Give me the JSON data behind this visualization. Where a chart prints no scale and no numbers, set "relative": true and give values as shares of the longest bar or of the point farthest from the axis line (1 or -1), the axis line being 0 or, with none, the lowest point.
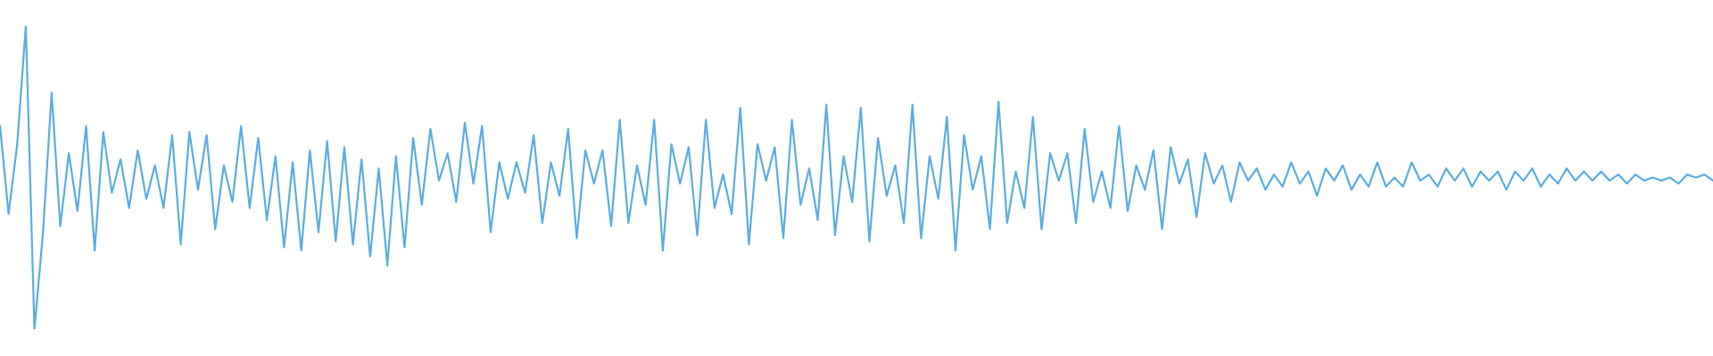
{
  "chart_data": {
    "type": "line",
    "relative": true,
    "categories": [
      null,
      null,
      null,
      null,
      null,
      null,
      null,
      null,
      null,
      null,
      null,
      null,
      null,
      null,
      null,
      null,
      null,
      null,
      null,
      null,
      null,
      null,
      null,
      null,
      null,
      null,
      null,
      null,
      null,
      null,
      null,
      null,
      null,
      null,
      null,
      null,
      null,
      null,
      null,
      null,
      null,
      null,
      null,
      null,
      null,
      null,
      null,
      null,
      null,
      null,
      null,
      null,
      null,
      null,
      null,
      null,
      null,
      null,
      null,
      null,
      null,
      null,
      null,
      null,
      null,
      null,
      null,
      null,
      null,
      null,
      null,
      null,
      null,
      null,
      null,
      null,
      null,
      null,
      null,
      null,
      null,
      null,
      null,
      null,
      null,
      null,
      null,
      null,
      null,
      null,
      null,
      null,
      null,
      null,
      null,
      null,
      null,
      null,
      null,
      null,
      null,
      null,
      null,
      null,
      null,
      null,
      null,
      null,
      null,
      null,
      null,
      null,
      null,
      null,
      null,
      null,
      null,
      null,
      null,
      null,
      null,
      null,
      null,
      null,
      null,
      null,
      null,
      null,
      null,
      null,
      null,
      null,
      null,
      null,
      null,
      null,
      null,
      null,
      null,
      null,
      null,
      null,
      null,
      null,
      null,
      null,
      null,
      null,
      null,
      null,
      null,
      null,
      null,
      null,
      null,
      null,
      null,
      null,
      null,
      null,
      null,
      null,
      null,
      null,
      null,
      null,
      null,
      null,
      null,
      null,
      null,
      null,
      null,
      null,
      null,
      null,
      null,
      null,
      null,
      null,
      null,
      null,
      null,
      null,
      null,
      null,
      null,
      null,
      null,
      null,
      null,
      null,
      null,
      null,
      null,
      null,
      null,
      null,
      null,
      null
    ],
    "series": [
      {
        "color": "#5dade2",
        "values": [
          0.67,
          0.38,
          0.61,
          1.0,
          0.0,
          0.32,
          0.78,
          0.34,
          0.58,
          0.39,
          0.67,
          0.26,
          0.65,
          0.45,
          0.56,
          0.4,
          0.59,
          0.43,
          0.54,
          0.4,
          0.64,
          0.28,
          0.65,
          0.46,
          0.64,
          0.33,
          0.54,
          0.42,
          0.67,
          0.4,
          0.63,
          0.36,
          0.57,
          0.27,
          0.55,
          0.26,
          0.59,
          0.32,
          0.62,
          0.29,
          0.6,
          0.28,
          0.56,
          0.24,
          0.53,
          0.21,
          0.57,
          0.27,
          0.63,
          0.41,
          0.66,
          0.49,
          0.58,
          0.42,
          0.68,
          0.48,
          0.67,
          0.32,
          0.55,
          0.43,
          0.55,
          0.45,
          0.64,
          0.35,
          0.55,
          0.44,
          0.66,
          0.3,
          0.59,
          0.48,
          0.59,
          0.34,
          0.69,
          0.35,
          0.54,
          0.41,
          0.69,
          0.26,
          0.61,
          0.48,
          0.6,
          0.31,
          0.69,
          0.4,
          0.51,
          0.38,
          0.73,
          0.28,
          0.61,
          0.49,
          0.6,
          0.3,
          0.69,
          0.41,
          0.53,
          0.36,
          0.74,
          0.31,
          0.57,
          0.42,
          0.73,
          0.29,
          0.63,
          0.44,
          0.54,
          0.35,
          0.74,
          0.3,
          0.57,
          0.43,
          0.7,
          0.26,
          0.64,
          0.46,
          0.57,
          0.33,
          0.75,
          0.35,
          0.52,
          0.4,
          0.7,
          0.33,
          0.58,
          0.49,
          0.58,
          0.35,
          0.66,
          0.42,
          0.52,
          0.4,
          0.67,
          0.39,
          0.54,
          0.46,
          0.59,
          0.33,
          0.6,
          0.48,
          0.56,
          0.37,
          0.58,
          0.48,
          0.54,
          0.42,
          0.55,
          0.49,
          0.53,
          0.46,
          0.51,
          0.47,
          0.55,
          0.48,
          0.52,
          0.44,
          0.53,
          0.49,
          0.54,
          0.46,
          0.51,
          0.47,
          0.55,
          0.47,
          0.5,
          0.47,
          0.55,
          0.49,
          0.51,
          0.47,
          0.53,
          0.49,
          0.53,
          0.47,
          0.52,
          0.49,
          0.52,
          0.46,
          0.52,
          0.49,
          0.53,
          0.47,
          0.51,
          0.48,
          0.53,
          0.49,
          0.52,
          0.49,
          0.52,
          0.49,
          0.51,
          0.48,
          0.51,
          0.49,
          0.5,
          0.49,
          0.5,
          0.48,
          0.51,
          0.5,
          0.51,
          0.49
        ]
      }
    ]
  }
}
